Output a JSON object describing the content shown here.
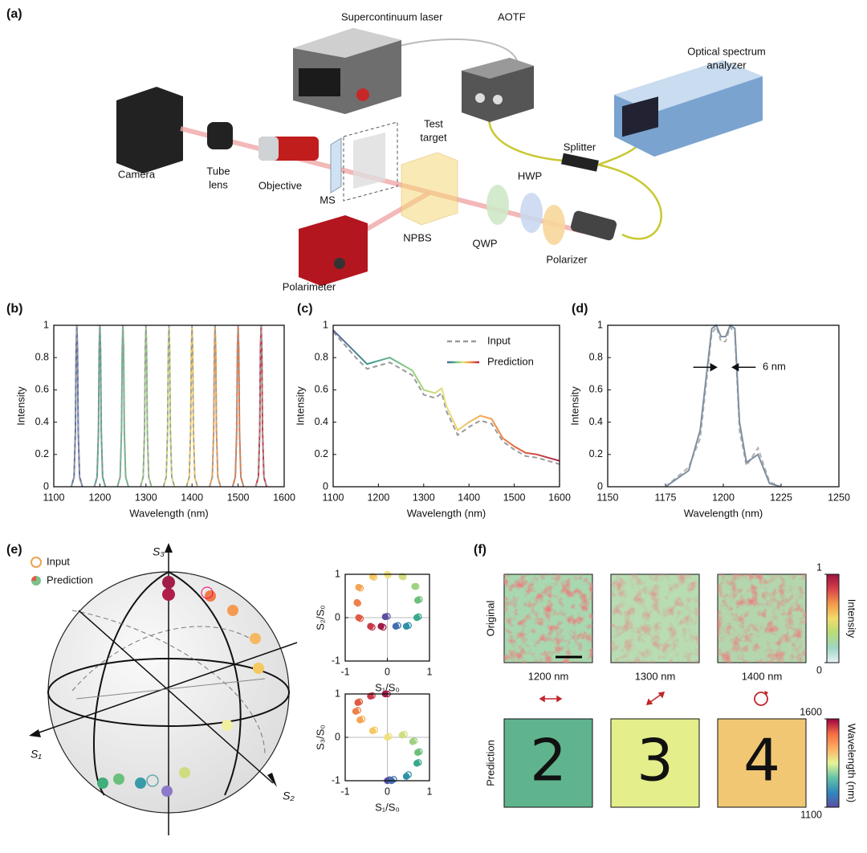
{
  "panel_labels": [
    "(a)",
    "(b)",
    "(c)",
    "(d)",
    "(e)",
    "(f)"
  ],
  "setup": {
    "labels": [
      [
        "Supercontinuum laser"
      ],
      [
        "AOTF"
      ],
      [
        "Optical spectrum",
        "analyzer"
      ],
      [
        "Test",
        "target"
      ],
      [
        "Camera"
      ],
      [
        "Tube",
        "lens"
      ],
      [
        "Objective"
      ],
      [
        "MS"
      ],
      [
        "Splitter"
      ],
      [
        "HWP"
      ],
      [
        "NPBS"
      ],
      [
        "QWP"
      ],
      [
        "Polarizer"
      ],
      [
        "Polarimeter"
      ]
    ]
  },
  "chart_data": [
    {
      "type": "line",
      "xlabel": "Wavelength (nm)",
      "ylabel": "Intensity",
      "xlim": [
        1100,
        1600
      ],
      "xticks": [
        1100,
        1200,
        1300,
        1400,
        1500,
        1600
      ],
      "ylim": [
        0,
        1
      ],
      "yticks": [
        0,
        0.2,
        0.4,
        0.6,
        0.8,
        1
      ],
      "overlay_color": "#9a9a9a",
      "series": [
        {
          "color": "#5b6fa8",
          "x": [
            1138,
            1144,
            1147,
            1148.5,
            1150,
            1151.5,
            1153,
            1156,
            1162
          ],
          "values": [
            0,
            0.06,
            0.35,
            0.85,
            1,
            0.85,
            0.35,
            0.06,
            0
          ]
        },
        {
          "color": "#4fa08b",
          "x": [
            1188,
            1194,
            1197,
            1198.5,
            1200,
            1201.5,
            1203,
            1206,
            1212
          ],
          "values": [
            0,
            0.06,
            0.35,
            0.85,
            1,
            0.85,
            0.35,
            0.06,
            0
          ]
        },
        {
          "color": "#6bbf8a",
          "x": [
            1238,
            1244,
            1247,
            1248.5,
            1250,
            1251.5,
            1253,
            1256,
            1262
          ],
          "values": [
            0,
            0.06,
            0.35,
            0.85,
            1,
            0.85,
            0.35,
            0.06,
            0
          ]
        },
        {
          "color": "#9fcf8a",
          "x": [
            1288,
            1294,
            1297,
            1298.5,
            1300,
            1301.5,
            1303,
            1306,
            1312
          ],
          "values": [
            0,
            0.06,
            0.35,
            0.85,
            1,
            0.85,
            0.35,
            0.06,
            0
          ]
        },
        {
          "color": "#c9d97a",
          "x": [
            1338,
            1344,
            1347,
            1348.5,
            1350,
            1351.5,
            1353,
            1356,
            1362
          ],
          "values": [
            0,
            0.06,
            0.35,
            0.85,
            1,
            0.85,
            0.35,
            0.06,
            0
          ]
        },
        {
          "color": "#f0c85a",
          "x": [
            1388,
            1394,
            1397,
            1398.5,
            1400,
            1401.5,
            1403,
            1406,
            1412
          ],
          "values": [
            0,
            0.06,
            0.35,
            0.85,
            1,
            0.85,
            0.35,
            0.06,
            0
          ]
        },
        {
          "color": "#f2a050",
          "x": [
            1438,
            1444,
            1447,
            1448.5,
            1450,
            1451.5,
            1453,
            1456,
            1462
          ],
          "values": [
            0,
            0.06,
            0.35,
            0.85,
            1,
            0.85,
            0.35,
            0.06,
            0
          ]
        },
        {
          "color": "#e8743e",
          "x": [
            1488,
            1494,
            1497,
            1498.5,
            1500,
            1501.5,
            1503,
            1506,
            1512
          ],
          "values": [
            0,
            0.06,
            0.35,
            0.85,
            1,
            0.85,
            0.35,
            0.06,
            0
          ]
        },
        {
          "color": "#c23b4a",
          "x": [
            1538,
            1544,
            1547,
            1548.5,
            1550,
            1551.5,
            1553,
            1556,
            1562
          ],
          "values": [
            0,
            0.06,
            0.35,
            0.85,
            1,
            0.85,
            0.35,
            0.06,
            0
          ]
        }
      ]
    },
    {
      "type": "line",
      "xlabel": "Wavelength (nm)",
      "ylabel": "Intensity",
      "xlim": [
        1100,
        1600
      ],
      "xticks": [
        1100,
        1200,
        1300,
        1400,
        1500,
        1600
      ],
      "ylim": [
        0,
        1
      ],
      "yticks": [
        0,
        0.2,
        0.4,
        0.6,
        0.8,
        1
      ],
      "legend": "upper right",
      "series": [
        {
          "name": "Input",
          "color": "#9a9a9a",
          "dash": true,
          "x": [
            1100,
            1125,
            1150,
            1175,
            1200,
            1225,
            1250,
            1275,
            1300,
            1325,
            1340,
            1350,
            1375,
            1400,
            1425,
            1450,
            1475,
            1500,
            1525,
            1550,
            1575,
            1600
          ],
          "values": [
            0.96,
            0.88,
            0.8,
            0.73,
            0.75,
            0.77,
            0.73,
            0.69,
            0.57,
            0.55,
            0.58,
            0.47,
            0.32,
            0.37,
            0.41,
            0.39,
            0.28,
            0.23,
            0.19,
            0.18,
            0.16,
            0.14
          ]
        },
        {
          "name": "Prediction",
          "colormap": [
            "#5a5f9a",
            "#3f9a90",
            "#8ccc80",
            "#e8e07a",
            "#f4a650",
            "#e0603c",
            "#b01e48"
          ],
          "x": [
            1100,
            1125,
            1150,
            1175,
            1200,
            1225,
            1250,
            1275,
            1300,
            1325,
            1340,
            1350,
            1375,
            1400,
            1425,
            1450,
            1475,
            1500,
            1525,
            1550,
            1575,
            1600
          ],
          "values": [
            0.97,
            0.9,
            0.83,
            0.76,
            0.78,
            0.8,
            0.76,
            0.72,
            0.6,
            0.58,
            0.61,
            0.5,
            0.35,
            0.4,
            0.44,
            0.42,
            0.3,
            0.25,
            0.21,
            0.2,
            0.18,
            0.16
          ]
        }
      ]
    },
    {
      "type": "line",
      "xlabel": "Wavelength (nm)",
      "ylabel": "Intensity",
      "xlim": [
        1150,
        1250
      ],
      "xticks": [
        1150,
        1175,
        1200,
        1225,
        1250
      ],
      "ylim": [
        0,
        1
      ],
      "yticks": [
        0,
        0.2,
        0.4,
        0.6,
        0.8,
        1
      ],
      "annotation": "6 nm",
      "series": [
        {
          "color": "#b0b0b0",
          "dash": true,
          "x": [
            1175,
            1185,
            1190,
            1195,
            1197,
            1199,
            1201,
            1203,
            1205,
            1207,
            1210,
            1215,
            1220,
            1225
          ],
          "values": [
            0,
            0.12,
            0.3,
            0.95,
            0.99,
            0.9,
            0.9,
            0.99,
            0.95,
            0.35,
            0.13,
            0.24,
            0.03,
            0
          ]
        },
        {
          "color": "#7f8fa0",
          "x": [
            1175,
            1185,
            1190,
            1195,
            1197,
            1199,
            1201,
            1203,
            1205,
            1207,
            1210,
            1215,
            1220,
            1225
          ],
          "values": [
            0,
            0.1,
            0.35,
            0.98,
            1,
            0.93,
            0.93,
            1,
            0.98,
            0.4,
            0.15,
            0.2,
            0.02,
            0
          ]
        }
      ]
    },
    {
      "type": "scatter",
      "xlabel": "S₁/S₀",
      "ylabel": "S₂/S₀",
      "xlim": [
        -1,
        1
      ],
      "xticks": [
        -1,
        0,
        1
      ],
      "ylim": [
        -1,
        1
      ],
      "yticks": [
        -1,
        0,
        1
      ],
      "zero_lines": true,
      "series": [
        {
          "filled": false,
          "colors": [
            "#5a4fa0",
            "#3f6fb0",
            "#2f90a8",
            "#3aa88c",
            "#6abf7c",
            "#a0d080",
            "#d0dc80",
            "#f0e080",
            "#f6c860",
            "#f5a552",
            "#ef8048",
            "#e05a44",
            "#c83a4a",
            "#a01e48"
          ],
          "x": [
            0,
            0.25,
            0.5,
            0.74,
            0.76,
            0.68,
            0.38,
            0.02,
            -0.32,
            -0.64,
            -0.7,
            -0.64,
            -0.36,
            -0.1
          ],
          "values": [
            0.03,
            -0.18,
            -0.18,
            0.02,
            0.42,
            0.72,
            0.94,
            0.98,
            0.93,
            0.68,
            0.33,
            -0.02,
            -0.22,
            -0.22
          ]
        },
        {
          "filled": true,
          "colors": [
            "#5a4fa0",
            "#3f6fb0",
            "#2f90a8",
            "#3aa88c",
            "#6abf7c",
            "#a0d080",
            "#d0dc80",
            "#f0e080",
            "#f6c860",
            "#f5a552",
            "#ef8048",
            "#e05a44",
            "#c83a4a",
            "#a01e48"
          ],
          "x": [
            -0.05,
            0.2,
            0.45,
            0.7,
            0.72,
            0.65,
            0.35,
            0,
            -0.35,
            -0.68,
            -0.72,
            -0.68,
            -0.4,
            -0.15
          ],
          "values": [
            0.02,
            -0.2,
            -0.2,
            0,
            0.4,
            0.72,
            0.95,
            1,
            0.95,
            0.7,
            0.35,
            0,
            -0.2,
            -0.2
          ]
        }
      ]
    },
    {
      "type": "scatter",
      "xlabel": "S₁/S₀",
      "ylabel": "S₃/S₀",
      "xlim": [
        -1,
        1
      ],
      "xticks": [
        -1,
        0,
        1
      ],
      "ylim": [
        -1,
        1
      ],
      "yticks": [
        -1,
        0,
        1
      ],
      "zero_lines": true,
      "series": [
        {
          "filled": false,
          "colors": [
            "#5a4fa0",
            "#3f6fb0",
            "#2f90a8",
            "#3aa88c",
            "#6abf7c",
            "#a0d080",
            "#d0dc80",
            "#f0e080",
            "#f6c860",
            "#f5a552",
            "#ef8048",
            "#e05a44",
            "#c83a4a",
            "#a01e48"
          ],
          "x": [
            0.05,
            0.15,
            0.5,
            0.74,
            0.76,
            0.64,
            0.4,
            0.04,
            -0.3,
            -0.6,
            -0.7,
            -0.66,
            -0.36,
            0
          ],
          "values": [
            -0.98,
            -0.97,
            -0.86,
            -0.58,
            -0.33,
            -0.08,
            0.07,
            0.02,
            0.17,
            0.42,
            0.62,
            0.82,
            0.96,
            1
          ]
        },
        {
          "filled": true,
          "colors": [
            "#5a4fa0",
            "#3f6fb0",
            "#2f90a8",
            "#3aa88c",
            "#6abf7c",
            "#a0d080",
            "#d0dc80",
            "#f0e080",
            "#f6c860",
            "#f5a552",
            "#ef8048",
            "#e05a44",
            "#c83a4a",
            "#a01e48"
          ],
          "x": [
            0,
            0.1,
            0.45,
            0.7,
            0.72,
            0.6,
            0.35,
            0,
            -0.35,
            -0.65,
            -0.75,
            -0.7,
            -0.4,
            -0.05
          ],
          "values": [
            -1,
            -1,
            -0.9,
            -0.6,
            -0.35,
            -0.1,
            0.05,
            0,
            0.15,
            0.4,
            0.6,
            0.8,
            0.95,
            1
          ]
        }
      ]
    }
  ],
  "sphere": {
    "legend": [
      "Input",
      "Prediction"
    ],
    "axes": [
      "S₃",
      "S₁",
      "S₂"
    ]
  },
  "images": {
    "rows": [
      "Original",
      "Prediction"
    ],
    "columns": [
      "1200 nm",
      "1300 nm",
      "1400 nm"
    ],
    "digits": [
      "2",
      "3",
      "4"
    ],
    "prediction_colors": [
      "#5fb48e",
      "#e4ee8a",
      "#f1c774"
    ]
  },
  "colorbars": [
    {
      "label": "Intensity",
      "lim": [
        0,
        1
      ],
      "ticks": [
        0,
        1
      ],
      "colors": [
        "#e8f2fb",
        "#9fd6c4",
        "#b7dc7a",
        "#f2dc6a",
        "#f29a4a",
        "#d8404a",
        "#9c1440"
      ]
    },
    {
      "label": "Wavelength (nm)",
      "lim": [
        1100,
        1600
      ],
      "ticks": [
        1100,
        1600
      ],
      "colors": [
        "#5b4ea2",
        "#3288bd",
        "#66c2a5",
        "#e6f598",
        "#fdae61",
        "#f46d43",
        "#9e0142"
      ]
    }
  ]
}
